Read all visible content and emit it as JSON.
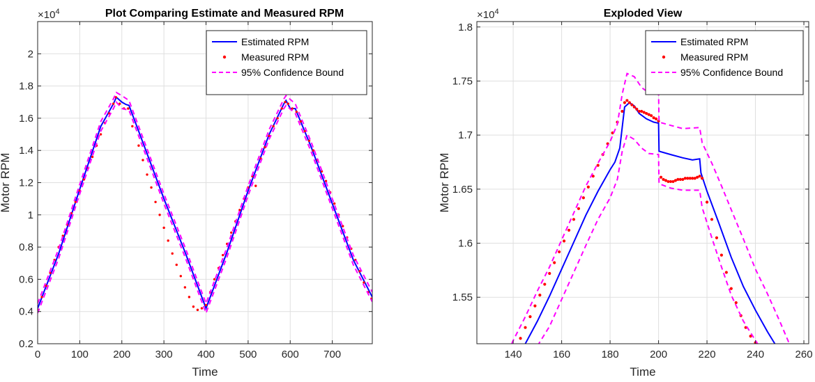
{
  "chart_data": [
    {
      "type": "line",
      "title": "Plot Comparing Estimate and Measured RPM",
      "xlabel": "Time",
      "ylabel": "Motor RPM",
      "y_exponent_label": "×10",
      "y_exponent_power": "4",
      "xlim": [
        0,
        795
      ],
      "ylim": [
        0.2,
        2.2
      ],
      "xticks": [
        0,
        100,
        200,
        300,
        400,
        500,
        600,
        700
      ],
      "yticks": [
        0.2,
        0.4,
        0.6,
        0.8,
        1,
        1.2,
        1.4,
        1.6,
        1.8,
        2
      ],
      "ytick_labels": [
        "0.2",
        "0.4",
        "0.6",
        "0.8",
        "1",
        "1.2",
        "1.4",
        "1.6",
        "1.8",
        "2"
      ],
      "grid": true,
      "legend_position": "top-right",
      "series": [
        {
          "name": "Estimated RPM",
          "style": "solid",
          "color": "#0000ff",
          "x": [
            0,
            50,
            100,
            150,
            180,
            187,
            200,
            210,
            217,
            250,
            300,
            350,
            400,
            450,
            500,
            550,
            585,
            590,
            600,
            612,
            650,
            700,
            750,
            795
          ],
          "y": [
            0.42,
            0.76,
            1.16,
            1.55,
            1.69,
            1.73,
            1.7,
            1.685,
            1.68,
            1.45,
            1.1,
            0.77,
            0.42,
            0.77,
            1.15,
            1.5,
            1.69,
            1.71,
            1.66,
            1.66,
            1.42,
            1.07,
            0.72,
            0.49
          ]
        },
        {
          "name": "Measured RPM",
          "style": "dots",
          "color": "#ff0000",
          "x": [
            0,
            10,
            20,
            30,
            40,
            50,
            60,
            70,
            80,
            90,
            100,
            110,
            120,
            130,
            140,
            150,
            160,
            170,
            180,
            186,
            195,
            205,
            215,
            225,
            240,
            250,
            260,
            270,
            280,
            290,
            300,
            310,
            320,
            330,
            340,
            350,
            360,
            370,
            380,
            390,
            400,
            410,
            420,
            430,
            440,
            450,
            460,
            470,
            480,
            490,
            500,
            510,
            518,
            530,
            540,
            550,
            560,
            570,
            580,
            588,
            595,
            605,
            615,
            625,
            635,
            645,
            655,
            665,
            675,
            685,
            695,
            705,
            715,
            725,
            735,
            745,
            755,
            765,
            775,
            785,
            793
          ],
          "y": [
            0.41,
            0.49,
            0.56,
            0.64,
            0.72,
            0.8,
            0.87,
            0.94,
            1.01,
            1.08,
            1.15,
            1.22,
            1.29,
            1.36,
            1.43,
            1.5,
            1.57,
            1.63,
            1.69,
            1.73,
            1.69,
            1.66,
            1.66,
            1.55,
            1.43,
            1.34,
            1.25,
            1.17,
            1.08,
            1.0,
            0.92,
            0.84,
            0.76,
            0.69,
            0.62,
            0.55,
            0.49,
            0.43,
            0.41,
            0.42,
            0.44,
            0.52,
            0.6,
            0.67,
            0.75,
            0.82,
            0.89,
            0.96,
            1.03,
            1.1,
            1.17,
            1.24,
            1.18,
            1.35,
            1.42,
            1.49,
            1.55,
            1.6,
            1.66,
            1.7,
            1.69,
            1.66,
            1.64,
            1.58,
            1.52,
            1.46,
            1.4,
            1.34,
            1.27,
            1.21,
            1.14,
            1.07,
            1.0,
            0.93,
            0.86,
            0.79,
            0.72,
            0.65,
            0.58,
            0.52,
            0.48
          ]
        },
        {
          "name": "95% Confidence Bound",
          "style": "dashed",
          "color": "#ff00ff",
          "x": [
            0,
            50,
            100,
            150,
            180,
            187,
            200,
            217,
            250,
            300,
            350,
            400,
            450,
            500,
            550,
            585,
            590,
            612,
            650,
            700,
            750,
            795
          ],
          "y": [
            0.45,
            0.79,
            1.19,
            1.58,
            1.72,
            1.76,
            1.74,
            1.71,
            1.48,
            1.13,
            0.8,
            0.45,
            0.8,
            1.18,
            1.53,
            1.72,
            1.74,
            1.69,
            1.45,
            1.1,
            0.75,
            0.52
          ]
        },
        {
          "name": "",
          "style": "dashed",
          "color": "#ff00ff",
          "x": [
            0,
            50,
            100,
            150,
            180,
            187,
            200,
            217,
            250,
            300,
            350,
            400,
            450,
            500,
            550,
            585,
            590,
            612,
            650,
            700,
            750,
            795
          ],
          "y": [
            0.39,
            0.73,
            1.13,
            1.52,
            1.66,
            1.7,
            1.66,
            1.65,
            1.42,
            1.07,
            0.74,
            0.39,
            0.74,
            1.12,
            1.47,
            1.66,
            1.68,
            1.63,
            1.39,
            1.04,
            0.69,
            0.46
          ]
        }
      ],
      "legend": [
        "Estimated RPM",
        "Measured RPM",
        "95% Confidence Bound"
      ]
    },
    {
      "type": "line",
      "title": "Exploded View",
      "xlabel": "Time",
      "ylabel": "Motor RPM",
      "y_exponent_label": "×10",
      "y_exponent_power": "4",
      "xlim": [
        125,
        262
      ],
      "ylim": [
        1.507,
        1.805
      ],
      "xticks": [
        140,
        160,
        180,
        200,
        220,
        240,
        260
      ],
      "yticks": [
        1.55,
        1.6,
        1.65,
        1.7,
        1.75,
        1.8
      ],
      "ytick_labels": [
        "1.55",
        "1.6",
        "1.65",
        "1.7",
        "1.75",
        "1.8"
      ],
      "grid": true,
      "legend_position": "top-right",
      "series": [
        {
          "name": "Estimated RPM",
          "style": "solid",
          "color": "#0000ff",
          "x": [
            145,
            150,
            155,
            160,
            165,
            170,
            175,
            180,
            182,
            184,
            186,
            188,
            190,
            192,
            195,
            198,
            200,
            200.2,
            205,
            210,
            214,
            217,
            217.5,
            220,
            225,
            230,
            235,
            240,
            245,
            248
          ],
          "y": [
            1.507,
            1.528,
            1.551,
            1.576,
            1.601,
            1.626,
            1.648,
            1.668,
            1.675,
            1.688,
            1.726,
            1.73,
            1.727,
            1.72,
            1.715,
            1.712,
            1.711,
            1.685,
            1.682,
            1.679,
            1.677,
            1.678,
            1.665,
            1.648,
            1.618,
            1.587,
            1.56,
            1.538,
            1.518,
            1.507
          ]
        },
        {
          "name": "Measured RPM",
          "style": "dots",
          "color": "#ff0000",
          "x": [
            143,
            145,
            147,
            149,
            151,
            153,
            155,
            157,
            159,
            161,
            163,
            165,
            167,
            169,
            171,
            173,
            175,
            177,
            179,
            181,
            183,
            185,
            186,
            187,
            188,
            189,
            190,
            191,
            192,
            193,
            194,
            195,
            196,
            197,
            198,
            199,
            200,
            201,
            202,
            203,
            204,
            205,
            206,
            207,
            208,
            209,
            210,
            211,
            212,
            213,
            214,
            215,
            216,
            217,
            218,
            220,
            222,
            224,
            226,
            228,
            230,
            232,
            234,
            236,
            238,
            240,
            241
          ],
          "y": [
            1.512,
            1.522,
            1.532,
            1.542,
            1.552,
            1.562,
            1.572,
            1.582,
            1.592,
            1.602,
            1.612,
            1.622,
            1.632,
            1.642,
            1.652,
            1.662,
            1.672,
            1.682,
            1.692,
            1.702,
            1.712,
            1.722,
            1.73,
            1.732,
            1.73,
            1.728,
            1.726,
            1.724,
            1.722,
            1.722,
            1.721,
            1.72,
            1.719,
            1.718,
            1.716,
            1.715,
            1.713,
            1.661,
            1.659,
            1.658,
            1.657,
            1.657,
            1.657,
            1.658,
            1.659,
            1.659,
            1.659,
            1.66,
            1.66,
            1.66,
            1.66,
            1.66,
            1.661,
            1.662,
            1.66,
            1.638,
            1.622,
            1.605,
            1.589,
            1.573,
            1.558,
            1.545,
            1.533,
            1.522,
            1.514,
            1.508,
            1.505
          ]
        },
        {
          "name": "95% Confidence Bound",
          "style": "dashed",
          "color": "#ff00ff",
          "x": [
            138,
            140,
            145,
            150,
            155,
            160,
            165,
            170,
            175,
            180,
            183,
            185,
            187,
            190,
            193,
            196,
            200,
            200.2,
            205,
            210,
            217,
            218,
            222,
            226,
            230,
            235,
            240,
            245,
            250,
            254
          ],
          "y": [
            1.5,
            1.51,
            1.532,
            1.556,
            1.578,
            1.603,
            1.628,
            1.653,
            1.674,
            1.694,
            1.71,
            1.738,
            1.757,
            1.754,
            1.744,
            1.739,
            1.74,
            1.712,
            1.709,
            1.706,
            1.707,
            1.693,
            1.674,
            1.653,
            1.631,
            1.604,
            1.576,
            1.553,
            1.528,
            1.507
          ]
        },
        {
          "name": "",
          "style": "dashed",
          "color": "#ff00ff",
          "x": [
            150,
            155,
            160,
            165,
            170,
            175,
            180,
            183,
            185,
            187,
            190,
            193,
            196,
            200,
            200.2,
            205,
            210,
            217,
            218,
            222,
            226,
            230,
            235,
            240,
            243
          ],
          "y": [
            1.505,
            1.523,
            1.548,
            1.573,
            1.598,
            1.622,
            1.642,
            1.659,
            1.685,
            1.7,
            1.696,
            1.688,
            1.683,
            1.682,
            1.655,
            1.651,
            1.649,
            1.649,
            1.633,
            1.605,
            1.578,
            1.552,
            1.528,
            1.51,
            1.5
          ]
        }
      ],
      "legend": [
        "Estimated RPM",
        "Measured RPM",
        "95% Confidence Bound"
      ]
    }
  ]
}
